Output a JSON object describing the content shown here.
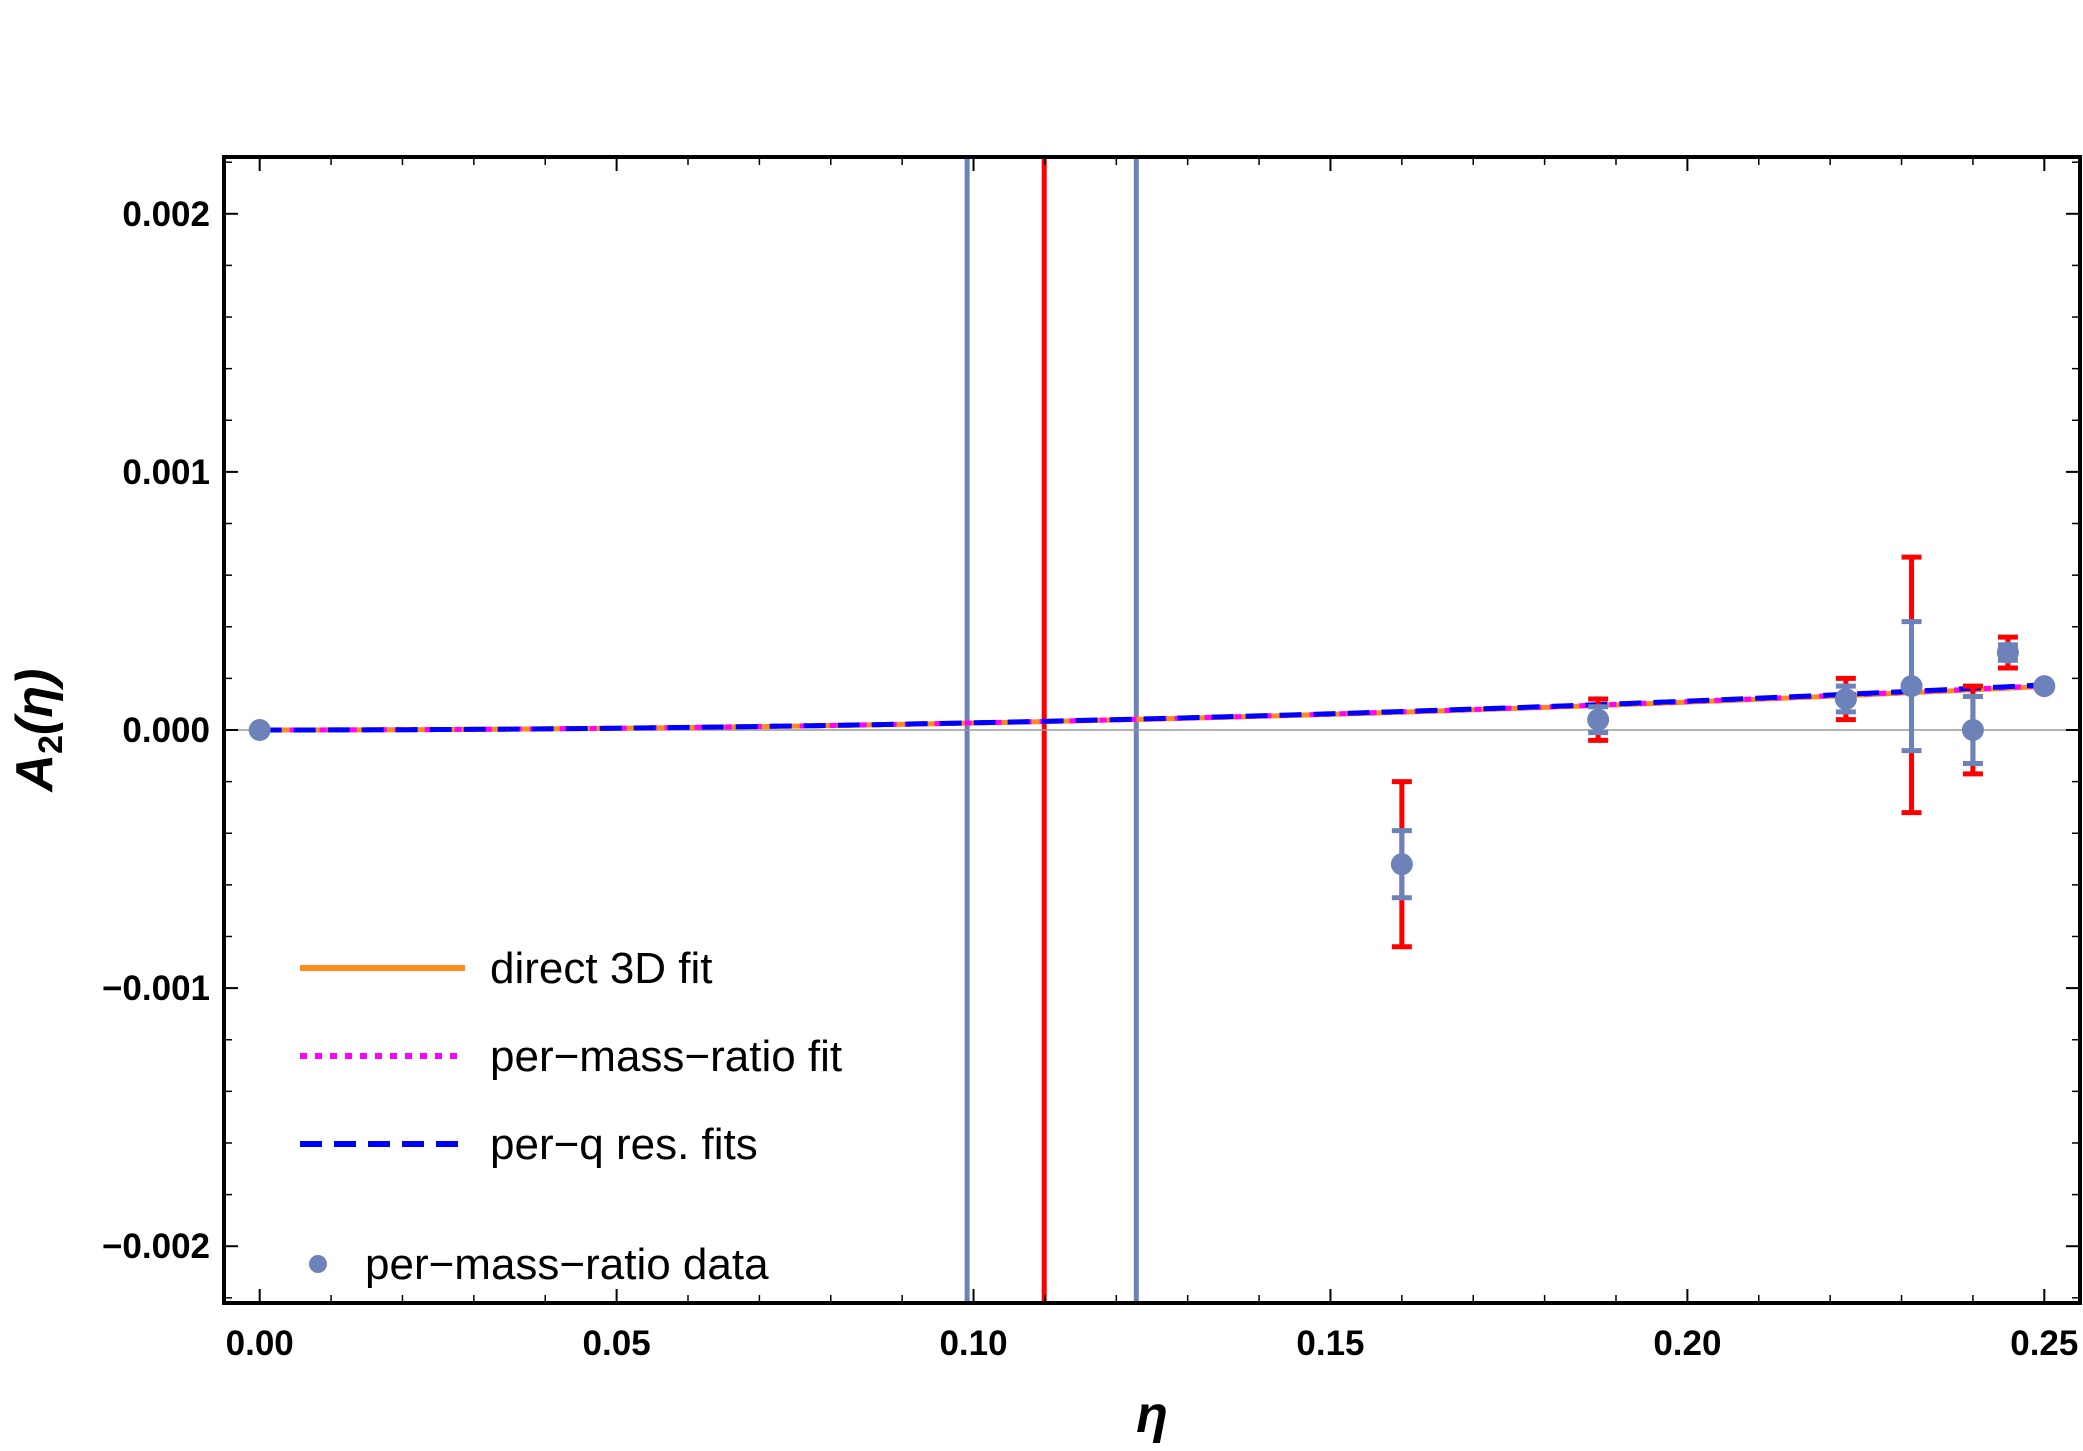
{
  "chart_data": {
    "type": "scatter",
    "title": "",
    "xlabel": "η",
    "ylabel_main": "A",
    "ylabel_sub": "2",
    "ylabel_tail": "(η)",
    "xlim": [
      -0.005,
      0.255
    ],
    "ylim": [
      -0.00222,
      0.00222
    ],
    "grid": false,
    "x_ticks": [
      0.0,
      0.05,
      0.1,
      0.15,
      0.2,
      0.25
    ],
    "x_tick_labels": [
      "0.00",
      "0.05",
      "0.10",
      "0.15",
      "0.20",
      "0.25"
    ],
    "y_ticks": [
      -0.002,
      -0.001,
      0.0,
      0.001,
      0.002
    ],
    "y_tick_labels": [
      "−0.002",
      "−0.001",
      "0.000",
      "0.001",
      "0.002"
    ],
    "zero_line": true,
    "vertical_lines": [
      {
        "x": 0.0991,
        "color": "#6d82b8"
      },
      {
        "x": 0.1099,
        "color": "#ff0000"
      },
      {
        "x": 0.1228,
        "color": "#6d82b8"
      }
    ],
    "curves": [
      {
        "name": "direct 3D fit",
        "color": "#ff8c1a",
        "style": "solid",
        "coef": 0.0027,
        "power": 2
      },
      {
        "name": "per-mass-ratio fit",
        "color": "#ff00ff",
        "style": "dotted",
        "coef": 0.00275,
        "power": 2
      },
      {
        "name": "per-q res. fits",
        "color": "#0000ff",
        "style": "dashed",
        "coef": 0.0028,
        "power": 2
      }
    ],
    "points": [
      {
        "x": 0.0,
        "y": 0.0,
        "blue_err": [
          0.0,
          0.0
        ],
        "red_err": [
          0.0,
          0.0
        ]
      },
      {
        "x": 0.16,
        "y": -0.00052,
        "blue_err": [
          -0.00065,
          -0.00039
        ],
        "red_err": [
          -0.00084,
          -0.0002
        ]
      },
      {
        "x": 0.1875,
        "y": 4e-05,
        "blue_err": [
          -1e-05,
          9e-05
        ],
        "red_err": [
          -4e-05,
          0.00012
        ]
      },
      {
        "x": 0.2222,
        "y": 0.00012,
        "blue_err": [
          7e-05,
          0.00017
        ],
        "red_err": [
          4e-05,
          0.0002
        ]
      },
      {
        "x": 0.2314,
        "y": 0.00017,
        "blue_err": [
          -8e-05,
          0.00042
        ],
        "red_err": [
          -0.00032,
          0.00067
        ]
      },
      {
        "x": 0.24,
        "y": 0.0,
        "blue_err": [
          -0.00013,
          0.00013
        ],
        "red_err": [
          -0.00017,
          0.00017
        ]
      },
      {
        "x": 0.2449,
        "y": 0.0003,
        "blue_err": [
          0.00027,
          0.00033
        ],
        "red_err": [
          0.00024,
          0.00036
        ]
      },
      {
        "x": 0.25,
        "y": 0.00017,
        "blue_err": [
          0.00017,
          0.00017
        ],
        "red_err": [
          0.00017,
          0.00017
        ]
      }
    ],
    "data_series_name": "per−mass−ratio data",
    "legend": [
      {
        "label": "direct 3D fit",
        "kind": "line",
        "color": "#ff8c1a",
        "style": "solid"
      },
      {
        "label": "per−mass−ratio fit",
        "kind": "line",
        "color": "#ff00ff",
        "style": "dotted"
      },
      {
        "label": "per−q res. fits",
        "kind": "line",
        "color": "#0000ff",
        "style": "dashed"
      },
      {
        "label": "per−mass−ratio data",
        "kind": "marker",
        "color": "#6d82b8",
        "style": "point"
      }
    ],
    "legend_placement": "bottom-left",
    "colors": {
      "frame": "#000000",
      "zero_line": "#999999",
      "point": "#6d82b8",
      "blue_error": "#6d82b8",
      "red_error": "#ff0000"
    }
  }
}
